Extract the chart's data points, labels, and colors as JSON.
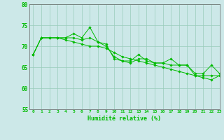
{
  "xlabel": "Humidité relative (%)",
  "background_color": "#cce8e8",
  "grid_color": "#99ccbb",
  "line_color": "#00bb00",
  "ylim": [
    55,
    80
  ],
  "xlim": [
    -0.5,
    23
  ],
  "yticks": [
    55,
    60,
    65,
    70,
    75,
    80
  ],
  "xtick_labels": [
    "0",
    "1",
    "2",
    "3",
    "4",
    "5",
    "6",
    "7",
    "8",
    "9",
    "10",
    "11",
    "12",
    "13",
    "14",
    "15",
    "16",
    "17",
    "18",
    "19",
    "20",
    "21",
    "22",
    "23"
  ],
  "series1": [
    68,
    72,
    72,
    72,
    72,
    73,
    72,
    74.5,
    71,
    70.5,
    67,
    66.5,
    66.5,
    68,
    66.5,
    66,
    66,
    67,
    65.5,
    65.5,
    63.5,
    63.5,
    65.5,
    63.5
  ],
  "series2": [
    68,
    72,
    72,
    72,
    72,
    72,
    71.5,
    72,
    71,
    70,
    67.5,
    66.5,
    66,
    67,
    67,
    66,
    66,
    65.5,
    65.5,
    65.5,
    63,
    63,
    63,
    63
  ],
  "series3": [
    68,
    72,
    72,
    72,
    71.5,
    71,
    70.5,
    70,
    70,
    69.5,
    68.5,
    67.5,
    67,
    66.5,
    66,
    65.5,
    65,
    64.5,
    64,
    63.5,
    63,
    62.5,
    62,
    63
  ]
}
